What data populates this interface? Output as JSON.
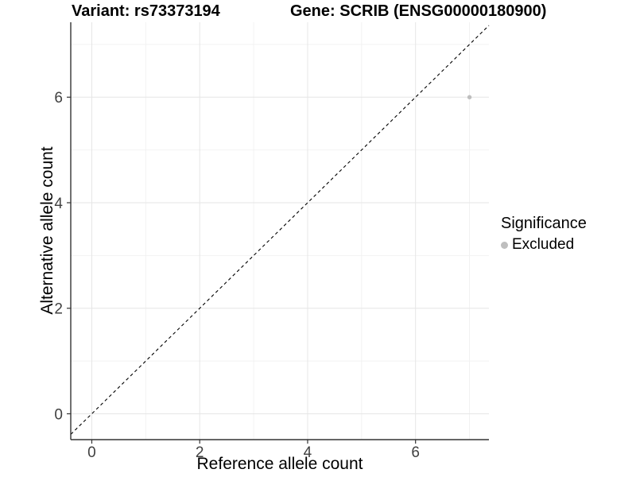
{
  "chart_data": {
    "type": "scatter",
    "titles": {
      "variant": "Variant: rs73373194",
      "gene": "Gene: SCRIB (ENSG00000180900)"
    },
    "xlabel": "Reference allele count",
    "ylabel": "Alternative allele count",
    "xlim": [
      -0.39,
      7.36
    ],
    "ylim": [
      -0.49,
      7.42
    ],
    "xticks": [
      {
        "value": 0,
        "label": "0"
      },
      {
        "value": 2,
        "label": "2"
      },
      {
        "value": 4,
        "label": "4"
      },
      {
        "value": 6,
        "label": "6"
      }
    ],
    "yticks": [
      {
        "value": 0,
        "label": "0"
      },
      {
        "value": 2,
        "label": "2"
      },
      {
        "value": 4,
        "label": "4"
      },
      {
        "value": 6,
        "label": "6"
      }
    ],
    "grid": {
      "on": true,
      "major": [
        0,
        2,
        4,
        6
      ],
      "minor": [
        1,
        3,
        5,
        7
      ]
    },
    "series": [
      {
        "name": "Excluded",
        "color": "#bebebe",
        "points": [
          {
            "x": 7,
            "y": 6
          }
        ]
      }
    ],
    "reference_line": {
      "type": "abline",
      "slope": 1,
      "intercept": 0,
      "style": "dashed",
      "color": "#000000"
    },
    "legend": {
      "position": "right",
      "title": "Significance",
      "items": [
        {
          "label": "Excluded",
          "color": "#bebebe"
        }
      ]
    },
    "colors": {
      "background": "#ffffff",
      "grid_major": "#e6e6e6",
      "grid_minor": "#f2f2f2",
      "axis_line": "#333333",
      "tick_text": "#404040",
      "title_text": "#000000"
    }
  }
}
